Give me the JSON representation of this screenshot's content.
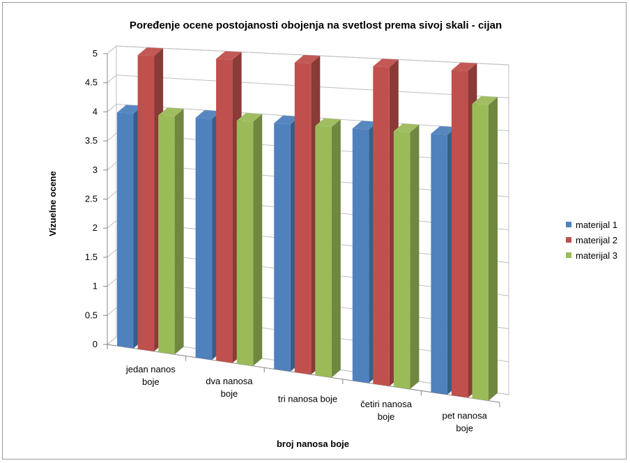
{
  "chart_data": {
    "type": "bar",
    "title": "Poređenje ocene postojanosti obojenja na svetlost prema sivoj skali - cijan",
    "xlabel": "broj nanosa boje",
    "ylabel": "Vizuelne ocene",
    "ylim": [
      0,
      5
    ],
    "yticks": [
      "0",
      "0.5",
      "1",
      "1.5",
      "2",
      "2.5",
      "3",
      "3.5",
      "4",
      "4.5",
      "5"
    ],
    "categories": [
      [
        "jedan nanos",
        "boje"
      ],
      [
        "dva nanosa",
        "boje"
      ],
      [
        "tri nanosa boje"
      ],
      [
        "četiri nanosa",
        "boje"
      ],
      [
        "pet nanosa",
        "boje"
      ]
    ],
    "series": [
      {
        "name": "materijal 1",
        "color": "#4F81BD",
        "values": [
          4.0,
          4.0,
          4.0,
          4.0,
          4.0
        ]
      },
      {
        "name": "materijal 2",
        "color": "#C0504D",
        "values": [
          5.0,
          5.0,
          5.0,
          5.0,
          5.0
        ]
      },
      {
        "name": "materijal 3",
        "color": "#9BBB59",
        "values": [
          4.0,
          4.0,
          4.0,
          4.0,
          4.5
        ]
      }
    ],
    "grid": true,
    "legend": "right",
    "view": "3d-column"
  }
}
